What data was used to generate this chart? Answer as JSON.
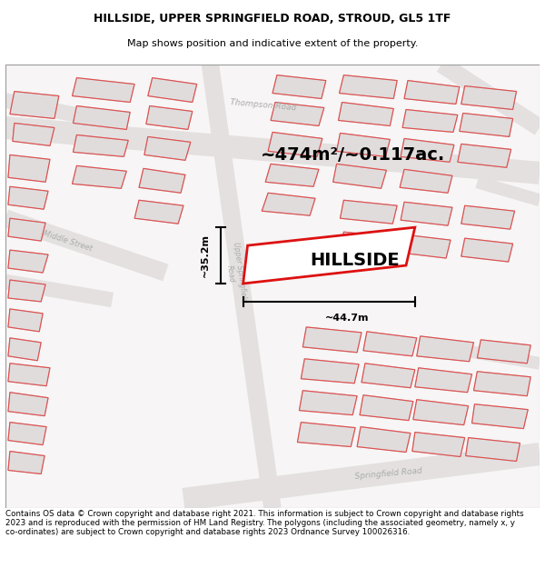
{
  "title_line1": "HILLSIDE, UPPER SPRINGFIELD ROAD, STROUD, GL5 1TF",
  "title_line2": "Map shows position and indicative extent of the property.",
  "footer_text": "Contains OS data © Crown copyright and database right 2021. This information is subject to Crown copyright and database rights 2023 and is reproduced with the permission of HM Land Registry. The polygons (including the associated geometry, namely x, y co-ordinates) are subject to Crown copyright and database rights 2023 Ordnance Survey 100026316.",
  "area_label": "~474m²/~0.117ac.",
  "property_label": "HILLSIDE",
  "dim_width": "~44.7m",
  "dim_height": "~35.2m",
  "map_bg": "#f7f5f5",
  "road_fill": "#e8e4e4",
  "building_fill": "#e0dcdc",
  "building_edge": "#c8c0c0",
  "red_outline": "#e05050",
  "property_red": "#dd1111",
  "road_label_color": "#aaaaaa",
  "title_fontsize": 9,
  "footer_fontsize": 6.3
}
